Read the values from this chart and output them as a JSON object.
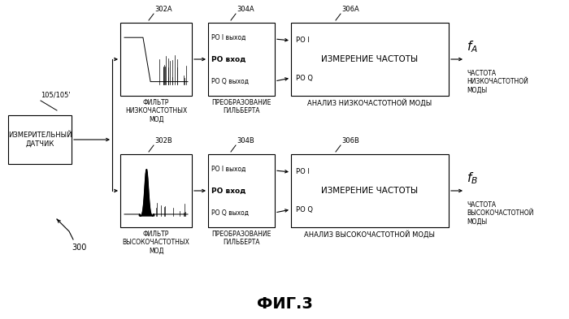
{
  "bg_color": "#ffffff",
  "title": "ФИГ.3",
  "sensor_label": "ИЗМЕРИТЕЛЬНЫЙ\nДАТЧИК",
  "sensor_ref": "105/105'",
  "filter_A_label": "ФИЛЬТР\nНИЗКОЧАСТОТНЫХ\nМОД",
  "filter_A_ref": "302A",
  "hilbert_A_label": "ПРЕОБРАЗОВАНИЕ\nГИЛЬБЕРТА",
  "hilbert_A_ref": "304A",
  "analysis_A_label": "АНАЛИЗ НИЗКОЧАСТОТНОЙ МОДЫ",
  "analysis_A_ref": "306A",
  "filter_B_label": "ФИЛЬТР\nВЫСОКОЧАСТОТНЫХ\nМОД",
  "filter_B_ref": "302B",
  "hilbert_B_label": "ПРЕОБРАЗОВАНИЕ\nГИЛЬБЕРТА",
  "hilbert_B_ref": "304B",
  "analysis_B_label": "АНАЛИЗ ВЫСОКОЧАСТОТНОЙ МОДЫ",
  "analysis_B_ref": "306B",
  "output_A_sub": "ЧАСТОТА\nНИЗКОЧАСТОТНОЙ\nМОДЫ",
  "output_B_sub": "ЧАСТОТА\nВЫСОКОЧАСТОТНОЙ\nМОДЫ",
  "label_300": "300"
}
